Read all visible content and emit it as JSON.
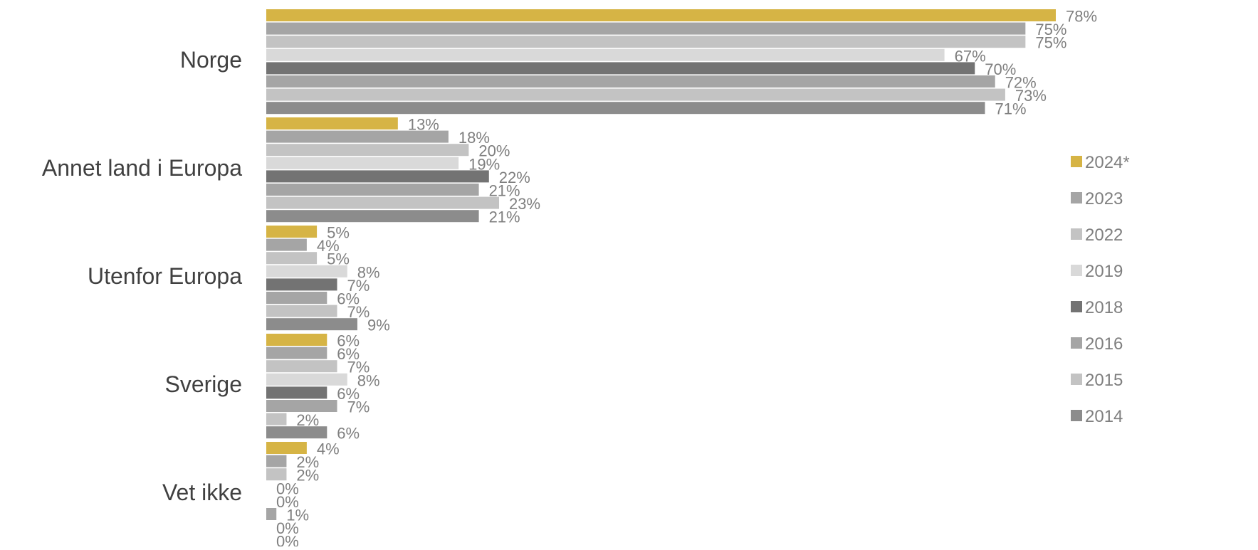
{
  "chart_data": {
    "type": "bar",
    "orientation": "horizontal",
    "categories": [
      "Norge",
      "Annet land i Europa",
      "Utenfor Europa",
      "Sverige",
      "Vet ikke"
    ],
    "series": [
      {
        "name": "2024*",
        "color": "#d6b445",
        "values": [
          78,
          13,
          5,
          6,
          4
        ],
        "labels": [
          "78%",
          "13%",
          "5%",
          "6%",
          "4%"
        ]
      },
      {
        "name": "2023",
        "color": "#a5a5a5",
        "values": [
          75,
          18,
          4,
          6,
          2
        ],
        "labels": [
          "75%",
          "18%",
          "4%",
          "6%",
          "2%"
        ]
      },
      {
        "name": "2022",
        "color": "#c3c3c3",
        "values": [
          75,
          20,
          5,
          7,
          2
        ],
        "labels": [
          "75%",
          "20%",
          "5%",
          "7%",
          "2%"
        ]
      },
      {
        "name": "2019",
        "color": "#d9d9d9",
        "values": [
          67,
          19,
          8,
          8,
          0
        ],
        "labels": [
          "67%",
          "19%",
          "8%",
          "8%",
          "0%"
        ]
      },
      {
        "name": "2018",
        "color": "#737373",
        "values": [
          70,
          22,
          7,
          6,
          0
        ],
        "labels": [
          "70%",
          "22%",
          "7%",
          "6%",
          "0%"
        ]
      },
      {
        "name": "2016",
        "color": "#a5a5a5",
        "values": [
          72,
          21,
          6,
          7,
          1
        ],
        "labels": [
          "72%",
          "21%",
          "6%",
          "7%",
          "1%"
        ]
      },
      {
        "name": "2015",
        "color": "#c3c3c3",
        "values": [
          73,
          23,
          7,
          2,
          0
        ],
        "labels": [
          "73%",
          "23%",
          "7%",
          "2%",
          "0%"
        ]
      },
      {
        "name": "2014",
        "color": "#8c8c8c",
        "values": [
          71,
          21,
          9,
          6,
          0
        ],
        "labels": [
          "71%",
          "21%",
          "9%",
          "6%",
          "0%"
        ]
      }
    ],
    "xlim": [
      0,
      78
    ],
    "grid": false,
    "legend": "right",
    "title": "",
    "xlabel": "",
    "ylabel": ""
  }
}
